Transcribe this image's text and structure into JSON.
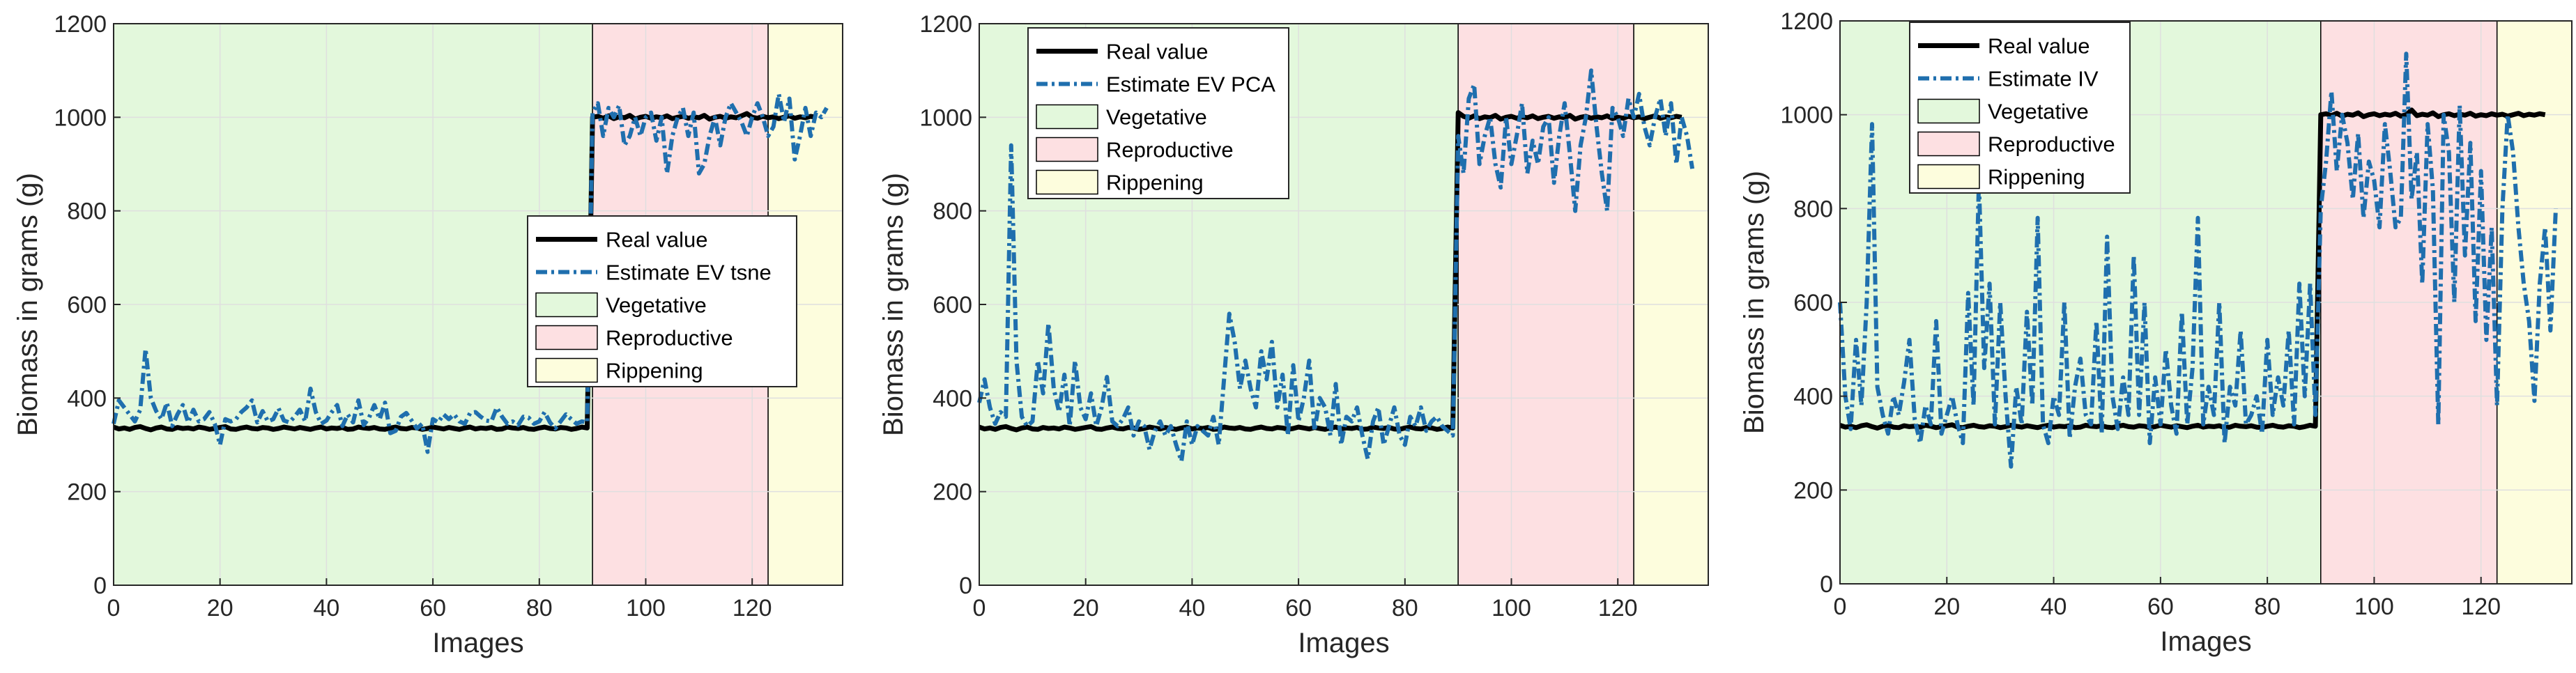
{
  "colors": {
    "real": "#000000",
    "estimate": "#1f6fae",
    "vegetative": "#e3f8dc",
    "reproductive": "#fde0e2",
    "rippening": "#fdfddd",
    "grid": "#dfdfdf",
    "axis": "#262626"
  },
  "chart_data": [
    {
      "type": "line",
      "xlabel": "Images",
      "ylabel": "Biomass in grams (g)",
      "xlim": [
        0,
        137
      ],
      "ylim": [
        0,
        1200
      ],
      "xticks": [
        0,
        20,
        40,
        60,
        80,
        100,
        120
      ],
      "yticks": [
        0,
        200,
        400,
        600,
        800,
        1000,
        1200
      ],
      "grid": true,
      "legend_position": "center-right",
      "regions": [
        {
          "name": "Vegetative",
          "x0": 0,
          "x1": 90
        },
        {
          "name": "Reproductive",
          "x0": 90,
          "x1": 123
        },
        {
          "name": "Rippening",
          "x0": 123,
          "x1": 137
        }
      ],
      "legend": [
        "Real value",
        "Estimate EV tsne",
        "Vegetative",
        "Reproductive",
        "Rippening"
      ],
      "series": [
        {
          "name": "Real value",
          "style": "solid",
          "x_start": 0,
          "values": [
            338,
            334,
            336,
            333,
            337,
            339,
            335,
            332,
            336,
            338,
            334,
            333,
            337,
            335,
            336,
            334,
            338,
            336,
            333,
            335,
            337,
            339,
            334,
            333,
            336,
            338,
            335,
            334,
            337,
            336,
            333,
            335,
            338,
            336,
            334,
            337,
            335,
            333,
            336,
            338,
            334,
            336,
            335,
            337,
            333,
            334,
            338,
            336,
            335,
            337,
            334,
            333,
            336,
            338,
            335,
            334,
            337,
            336,
            333,
            335,
            338,
            336,
            334,
            337,
            335,
            333,
            336,
            338,
            334,
            336,
            335,
            337,
            333,
            334,
            338,
            336,
            335,
            337,
            334,
            333,
            336,
            338,
            335,
            334,
            337,
            336,
            333,
            335,
            338,
            336,
            1000,
            1002,
            998,
            1003,
            997,
            1001,
            999,
            1004,
            996,
            1000,
            1002,
            998,
            1001,
            999,
            1003,
            997,
            1000,
            1002,
            998,
            1001,
            999,
            1004,
            996,
            1000,
            1002,
            998,
            1001,
            999,
            1003,
            1008,
            1000,
            998,
            1002,
            999,
            1001,
            997,
            1000,
            1003,
            998,
            1001,
            999,
            1002,
            1000
          ]
        },
        {
          "name": "Estimate EV tsne",
          "style": "dashdot",
          "x_start": 0,
          "values": [
            345,
            395,
            380,
            365,
            350,
            375,
            505,
            400,
            372,
            355,
            390,
            340,
            365,
            385,
            348,
            375,
            350,
            355,
            370,
            345,
            300,
            355,
            350,
            355,
            370,
            380,
            395,
            348,
            372,
            350,
            355,
            378,
            352,
            348,
            360,
            375,
            350,
            420,
            370,
            345,
            352,
            370,
            385,
            340,
            365,
            348,
            395,
            342,
            358,
            385,
            355,
            390,
            325,
            330,
            360,
            368,
            352,
            335,
            345,
            285,
            355,
            348,
            365,
            355,
            365,
            350,
            345,
            368,
            370,
            360,
            352,
            350,
            380,
            360,
            345,
            350,
            342,
            360,
            358,
            345,
            350,
            370,
            348,
            335,
            350,
            365,
            355,
            345,
            350,
            348,
            1010,
            1030,
            960,
            1020,
            1000,
            1025,
            940,
            960,
            1000,
            960,
            1000,
            1010,
            950,
            1000,
            880,
            960,
            1000,
            1020,
            960,
            1010,
            880,
            900,
            960,
            1000,
            940,
            1000,
            1030,
            1010,
            990,
            960,
            1000,
            1030,
            1000,
            960,
            980,
            1050,
            990,
            1040,
            910,
            960,
            1020,
            960,
            1010,
            1000,
            1020
          ]
        }
      ]
    },
    {
      "type": "line",
      "xlabel": "Images",
      "ylabel": "Biomass in grams (g)",
      "xlim": [
        0,
        137
      ],
      "ylim": [
        0,
        1200
      ],
      "xticks": [
        0,
        20,
        40,
        60,
        80,
        100,
        120
      ],
      "yticks": [
        0,
        200,
        400,
        600,
        800,
        1000,
        1200
      ],
      "grid": true,
      "legend_position": "top-left",
      "regions": [
        {
          "name": "Vegetative",
          "x0": 0,
          "x1": 90
        },
        {
          "name": "Reproductive",
          "x0": 90,
          "x1": 123
        },
        {
          "name": "Rippening",
          "x0": 123,
          "x1": 137
        }
      ],
      "legend": [
        "Real value",
        "Estimate EV PCA",
        "Vegetative",
        "Reproductive",
        "Rippening"
      ],
      "series": [
        {
          "name": "Real value",
          "style": "solid",
          "x_start": 0,
          "values": [
            338,
            334,
            336,
            333,
            337,
            339,
            335,
            332,
            336,
            338,
            334,
            333,
            337,
            335,
            336,
            334,
            338,
            336,
            333,
            335,
            337,
            339,
            334,
            333,
            336,
            338,
            335,
            334,
            337,
            336,
            333,
            335,
            338,
            336,
            334,
            337,
            335,
            333,
            336,
            338,
            334,
            336,
            335,
            337,
            333,
            334,
            338,
            336,
            335,
            337,
            334,
            333,
            336,
            338,
            335,
            334,
            337,
            336,
            333,
            335,
            338,
            336,
            334,
            337,
            335,
            333,
            336,
            338,
            334,
            336,
            335,
            337,
            333,
            334,
            338,
            336,
            335,
            337,
            334,
            333,
            336,
            338,
            335,
            334,
            337,
            336,
            333,
            335,
            338,
            336,
            1010,
            1002,
            998,
            1003,
            997,
            1001,
            999,
            1004,
            996,
            1000,
            1002,
            998,
            1001,
            999,
            1003,
            997,
            1000,
            1002,
            998,
            1001,
            999,
            1004,
            996,
            1000,
            1002,
            998,
            1001,
            999,
            1003,
            997,
            1000,
            998,
            1002,
            999,
            1001,
            997,
            1000,
            1003,
            998,
            1001,
            999,
            1002,
            1000
          ]
        },
        {
          "name": "Estimate EV PCA",
          "style": "dashdot",
          "x_start": 0,
          "values": [
            390,
            440,
            380,
            345,
            370,
            360,
            940,
            480,
            360,
            340,
            350,
            480,
            410,
            560,
            420,
            370,
            450,
            340,
            480,
            380,
            355,
            410,
            340,
            380,
            445,
            350,
            340,
            355,
            380,
            320,
            350,
            340,
            290,
            330,
            350,
            320,
            340,
            300,
            265,
            350,
            300,
            340,
            330,
            320,
            360,
            300,
            440,
            580,
            520,
            420,
            480,
            420,
            380,
            500,
            440,
            520,
            380,
            450,
            320,
            470,
            350,
            400,
            480,
            330,
            400,
            380,
            320,
            430,
            300,
            360,
            350,
            380,
            320,
            270,
            350,
            380,
            300,
            340,
            380,
            320,
            300,
            360,
            340,
            380,
            330,
            350,
            360,
            340,
            330,
            320,
            960,
            880,
            1040,
            1070,
            900,
            960,
            1000,
            900,
            850,
            1000,
            900,
            960,
            1030,
            880,
            950,
            900,
            980,
            1000,
            860,
            960,
            1030,
            920,
            800,
            940,
            1000,
            1100,
            980,
            880,
            800,
            1020,
            1000,
            960,
            1040,
            1000,
            1050,
            980,
            940,
            1000,
            1040,
            960,
            1030,
            900,
            1000,
            960,
            890
          ]
        }
      ]
    },
    {
      "type": "line",
      "xlabel": "Images",
      "ylabel": "Biomass in grams (g)",
      "xlim": [
        0,
        137
      ],
      "ylim": [
        0,
        1200
      ],
      "xticks": [
        0,
        20,
        40,
        60,
        80,
        100,
        120
      ],
      "yticks": [
        0,
        200,
        400,
        600,
        800,
        1000,
        1200
      ],
      "grid": true,
      "legend_position": "top-left",
      "regions": [
        {
          "name": "Vegetative",
          "x0": 0,
          "x1": 90
        },
        {
          "name": "Reproductive",
          "x0": 90,
          "x1": 123
        },
        {
          "name": "Rippening",
          "x0": 123,
          "x1": 137
        }
      ],
      "legend": [
        "Real value",
        "Estimate IV",
        "Vegetative",
        "Reproductive",
        "Rippening"
      ],
      "series": [
        {
          "name": "Real value",
          "style": "solid",
          "x_start": 0,
          "values": [
            338,
            334,
            336,
            333,
            337,
            339,
            335,
            332,
            336,
            338,
            334,
            333,
            337,
            335,
            336,
            334,
            338,
            336,
            333,
            335,
            337,
            339,
            334,
            333,
            336,
            338,
            335,
            334,
            337,
            336,
            333,
            335,
            338,
            336,
            334,
            337,
            335,
            333,
            336,
            338,
            334,
            336,
            335,
            337,
            333,
            334,
            338,
            336,
            335,
            337,
            334,
            333,
            336,
            338,
            335,
            334,
            337,
            336,
            333,
            335,
            338,
            336,
            334,
            337,
            335,
            333,
            336,
            338,
            334,
            336,
            335,
            337,
            333,
            334,
            338,
            336,
            335,
            337,
            334,
            333,
            336,
            338,
            335,
            334,
            337,
            336,
            333,
            335,
            338,
            336,
            1000,
            1002,
            998,
            1003,
            997,
            1001,
            999,
            1004,
            996,
            1000,
            1002,
            998,
            1001,
            999,
            1003,
            997,
            1000,
            1010,
            998,
            1001,
            999,
            1004,
            996,
            1000,
            1002,
            998,
            1001,
            999,
            1003,
            997,
            1000,
            998,
            1002,
            999,
            1001,
            997,
            1000,
            1003,
            998,
            1001,
            999,
            1002,
            1000
          ]
        },
        {
          "name": "Estimate IV",
          "style": "dashdot",
          "x_start": 0,
          "values": [
            600,
            400,
            330,
            520,
            380,
            600,
            980,
            420,
            360,
            320,
            400,
            360,
            430,
            520,
            350,
            300,
            380,
            340,
            560,
            320,
            360,
            400,
            340,
            300,
            620,
            380,
            860,
            460,
            640,
            340,
            600,
            400,
            250,
            420,
            340,
            580,
            380,
            780,
            340,
            300,
            400,
            360,
            600,
            310,
            420,
            480,
            360,
            340,
            560,
            320,
            740,
            400,
            330,
            440,
            360,
            700,
            360,
            600,
            300,
            440,
            340,
            500,
            380,
            320,
            580,
            340,
            460,
            780,
            340,
            420,
            360,
            600,
            300,
            420,
            380,
            540,
            340,
            360,
            400,
            320,
            520,
            360,
            440,
            380,
            540,
            340,
            640,
            400,
            640,
            360,
            800,
            900,
            1050,
            880,
            1000,
            940,
            820,
            960,
            780,
            900,
            860,
            760,
            980,
            880,
            760,
            780,
            1130,
            820,
            920,
            640,
            980,
            840,
            340,
            1000,
            920,
            600,
            1020,
            700,
            940,
            560,
            880,
            520,
            760,
            380,
            800,
            1000,
            920,
            760,
            640,
            560,
            390,
            640,
            760,
            540,
            800
          ]
        }
      ]
    }
  ]
}
